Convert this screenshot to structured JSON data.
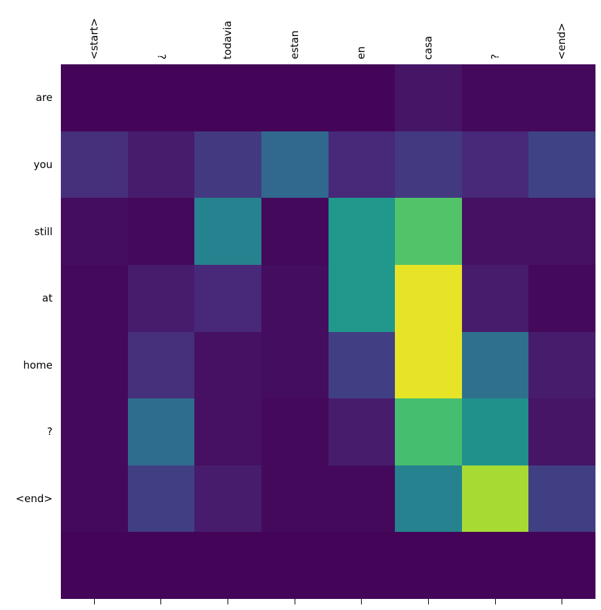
{
  "figure": {
    "background": "#ffffff",
    "text_color": "#000000"
  },
  "chart_data": {
    "type": "heatmap",
    "title": "",
    "description": "Attention-weight matrix between a Spanish source sentence (columns) and an English target sentence (rows)",
    "x_labels": [
      "<start>",
      "¿",
      "todavia",
      "estan",
      "en",
      "casa",
      "?",
      "<end>"
    ],
    "y_labels": [
      "are",
      "you",
      "still",
      "at",
      "home",
      "?",
      "<end>",
      ""
    ],
    "values": [
      [
        0.01,
        0.01,
        0.01,
        0.01,
        0.01,
        0.05,
        0.02,
        0.02
      ],
      [
        0.12,
        0.07,
        0.15,
        0.3,
        0.1,
        0.15,
        0.1,
        0.18
      ],
      [
        0.03,
        0.02,
        0.4,
        0.02,
        0.55,
        0.75,
        0.04,
        0.04
      ],
      [
        0.02,
        0.07,
        0.1,
        0.03,
        0.55,
        0.97,
        0.07,
        0.02
      ],
      [
        0.02,
        0.12,
        0.04,
        0.03,
        0.17,
        0.97,
        0.33,
        0.07
      ],
      [
        0.02,
        0.32,
        0.04,
        0.02,
        0.07,
        0.73,
        0.5,
        0.05
      ],
      [
        0.02,
        0.17,
        0.07,
        0.02,
        0.02,
        0.4,
        0.88,
        0.17
      ],
      [
        0.01,
        0.01,
        0.01,
        0.01,
        0.01,
        0.01,
        0.01,
        0.01
      ]
    ],
    "value_range": [
      0,
      1
    ],
    "colormap": "viridis",
    "colormap_stops": [
      [
        0.0,
        "#440154"
      ],
      [
        0.1,
        "#482878"
      ],
      [
        0.2,
        "#3e4989"
      ],
      [
        0.3,
        "#31688e"
      ],
      [
        0.4,
        "#26828e"
      ],
      [
        0.5,
        "#21918c"
      ],
      [
        0.6,
        "#1f9e89"
      ],
      [
        0.7,
        "#35b779"
      ],
      [
        0.8,
        "#6ece58"
      ],
      [
        0.9,
        "#b5de2b"
      ],
      [
        1.0,
        "#fde725"
      ]
    ],
    "legend": "none",
    "grid": false
  }
}
